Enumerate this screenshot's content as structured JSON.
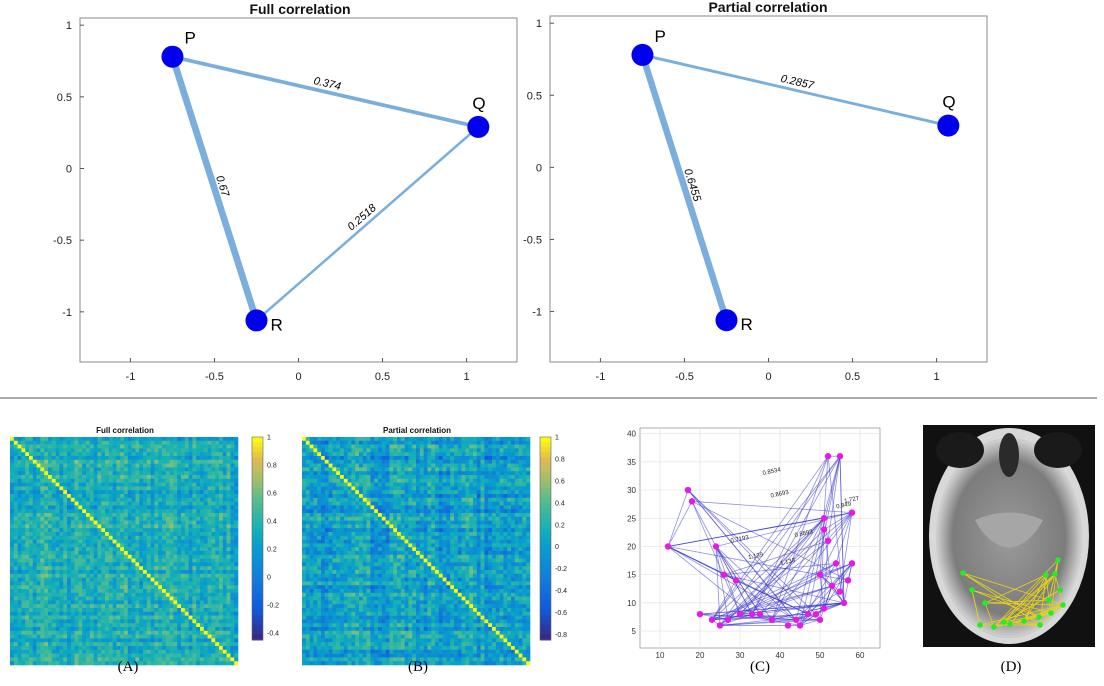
{
  "chart_data": [
    {
      "type": "network",
      "id": "full",
      "title": "Full correlation",
      "xlim": [
        -1.3,
        1.3
      ],
      "ylim": [
        -1.35,
        1.05
      ],
      "xticks": [
        -1,
        -0.5,
        0,
        0.5,
        1
      ],
      "yticks": [
        1,
        0.5,
        0,
        -0.5,
        -1
      ],
      "nodes": [
        {
          "name": "P",
          "x": -0.75,
          "y": 0.78
        },
        {
          "name": "Q",
          "x": 1.07,
          "y": 0.29
        },
        {
          "name": "R",
          "x": -0.25,
          "y": -1.06
        }
      ],
      "edges": [
        {
          "from": "P",
          "to": "Q",
          "weight": 0.374,
          "label": "0.374"
        },
        {
          "from": "P",
          "to": "R",
          "weight": 0.67,
          "label": "0.67"
        },
        {
          "from": "Q",
          "to": "R",
          "weight": 0.2518,
          "label": "0.2518"
        }
      ]
    },
    {
      "type": "network",
      "id": "partial",
      "title": "Partial correlation",
      "xlim": [
        -1.3,
        1.3
      ],
      "ylim": [
        -1.35,
        1.05
      ],
      "xticks": [
        -1,
        -0.5,
        0,
        0.5,
        1
      ],
      "yticks": [
        1,
        0.5,
        0,
        -0.5,
        -1
      ],
      "nodes": [
        {
          "name": "P",
          "x": -0.75,
          "y": 0.78
        },
        {
          "name": "Q",
          "x": 1.07,
          "y": 0.29
        },
        {
          "name": "R",
          "x": -0.25,
          "y": -1.06
        }
      ],
      "edges": [
        {
          "from": "P",
          "to": "Q",
          "weight": 0.2857,
          "label": "0.2857"
        },
        {
          "from": "P",
          "to": "R",
          "weight": 0.6455,
          "label": "0.6455"
        }
      ]
    },
    {
      "type": "heatmap",
      "id": "A",
      "title": "Full correlation",
      "colorbar_ticks": [
        "1",
        "0.8",
        "0.6",
        "0.4",
        "0.2",
        "0",
        "-0.2",
        "-0.4"
      ],
      "colorbar_range": [
        -0.45,
        1
      ],
      "caption": "(A)"
    },
    {
      "type": "heatmap",
      "id": "B",
      "title": "Partial correlation",
      "colorbar_ticks": [
        "1",
        "0.8",
        "0.6",
        "0.4",
        "0.2",
        "0",
        "-0.2",
        "-0.4",
        "-0.6",
        "-0.8"
      ],
      "colorbar_range": [
        -0.85,
        1
      ],
      "caption": "(B)"
    },
    {
      "type": "scatter",
      "id": "C",
      "xlim": [
        5,
        65
      ],
      "ylim": [
        2,
        41
      ],
      "xticks": [
        "10",
        "20",
        "30",
        "40",
        "50",
        "60"
      ],
      "yticks": [
        "40",
        "35",
        "30",
        "25",
        "20",
        "15",
        "10",
        "5"
      ],
      "edge_labels": [
        "0.8534",
        "0.8693",
        "1.727",
        "0.849",
        "0.7193",
        "1.139",
        "0.8893",
        "1.133"
      ],
      "caption": "(C)"
    },
    {
      "type": "image",
      "id": "D",
      "caption": "(D)"
    }
  ],
  "colors": {
    "edge": "#7aaedc",
    "node": "#0000ee",
    "scatter_node": "#e619e6",
    "scatter_edge": "#3333cc",
    "brain_node": "#22ee22",
    "brain_edge": "#e6d21a"
  }
}
